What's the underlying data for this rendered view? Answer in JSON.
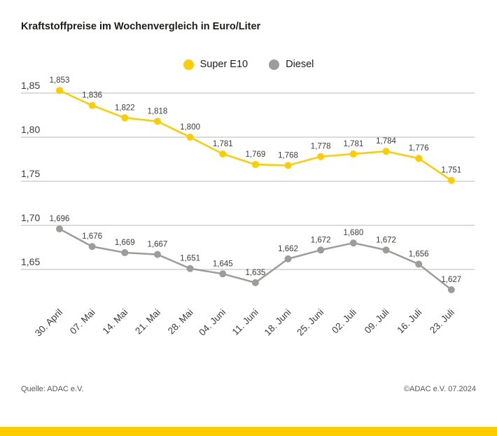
{
  "footer": {
    "source": "Quelle: ADAC e.V.",
    "copyright": "©ADAC e.V. 07.2024"
  },
  "colors": {
    "super_e10": "#FFCC00",
    "diesel": "#9C9C9B",
    "grid": "#C8C8C8",
    "title_text": "#1D1D1B",
    "label_text": "#3C3C3B",
    "footer_text": "#575756",
    "brand": "#FFCC00"
  },
  "chart_data": {
    "type": "line",
    "title": "Kraftstoffpreise im Wochenvergleich in Euro/Liter",
    "xlabel": "",
    "ylabel": "Euro/Liter",
    "categories": [
      "30. April",
      "07. Mai",
      "14. Mai",
      "21. Mai",
      "28. Mai",
      "04. Juni",
      "11. Juni",
      "18. Juni",
      "25. Juni",
      "02. Juli",
      "09. Juli",
      "16. Juli",
      "23. Juli"
    ],
    "series": [
      {
        "name": "Super E10",
        "color_key": "super_e10",
        "values": [
          1.853,
          1.836,
          1.822,
          1.818,
          1.8,
          1.781,
          1.769,
          1.768,
          1.778,
          1.781,
          1.784,
          1.776,
          1.751
        ]
      },
      {
        "name": "Diesel",
        "color_key": "diesel",
        "values": [
          1.696,
          1.676,
          1.669,
          1.667,
          1.651,
          1.645,
          1.635,
          1.662,
          1.672,
          1.68,
          1.672,
          1.656,
          1.627
        ]
      }
    ],
    "yticks": [
      {
        "value": 1.85,
        "label": "1,85"
      },
      {
        "value": 1.8,
        "label": "1,80"
      },
      {
        "value": 1.75,
        "label": "1,75"
      },
      {
        "value": 1.7,
        "label": "1,70"
      },
      {
        "value": 1.65,
        "label": "1,65"
      }
    ],
    "ylim": [
      1.615,
      1.865
    ],
    "grid": true,
    "legend_position": "top",
    "decimal_separator": ","
  }
}
